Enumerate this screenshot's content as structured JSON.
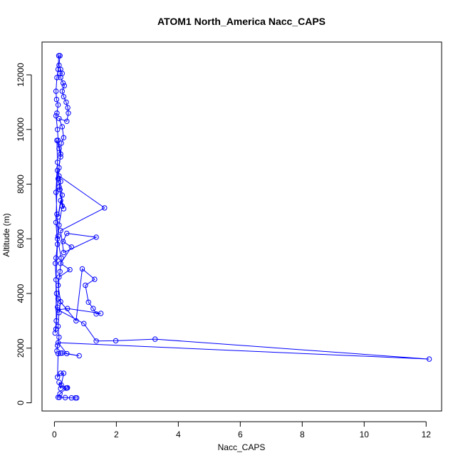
{
  "chart_data": {
    "type": "line",
    "title": "ATOM1 North_America Nacc_CAPS",
    "xlabel": "Nacc_CAPS",
    "ylabel": "Altitude (m)",
    "xlim": [
      -0.4,
      12.5
    ],
    "ylim": [
      -300,
      13200
    ],
    "x_ticks": [
      0,
      2,
      4,
      6,
      8,
      10,
      12
    ],
    "y_ticks": [
      0,
      2000,
      4000,
      6000,
      8000,
      10000,
      12000
    ],
    "grid": false,
    "series": [
      {
        "color": "#0000ff",
        "marker": "open-circle",
        "points": [
          [
            0.68,
            180
          ],
          [
            0.72,
            180
          ],
          [
            0.55,
            180
          ],
          [
            0.35,
            190
          ],
          [
            0.16,
            200
          ],
          [
            0.12,
            200
          ],
          [
            0.18,
            330
          ],
          [
            0.4,
            540
          ],
          [
            0.42,
            550
          ],
          [
            0.37,
            540
          ],
          [
            0.22,
            650
          ],
          [
            0.15,
            750
          ],
          [
            0.2,
            520
          ],
          [
            0.3,
            1080
          ],
          [
            0.2,
            1080
          ],
          [
            0.1,
            940
          ],
          [
            0.12,
            1800
          ],
          [
            0.2,
            1820
          ],
          [
            0.25,
            1820
          ],
          [
            0.8,
            1720
          ],
          [
            0.4,
            1800
          ],
          [
            0.12,
            2200
          ],
          [
            12.1,
            1600
          ],
          [
            3.25,
            2330
          ],
          [
            1.98,
            2270
          ],
          [
            1.35,
            2260
          ],
          [
            0.95,
            2900
          ],
          [
            0.12,
            3400
          ],
          [
            0.42,
            3450
          ],
          [
            1.5,
            3270
          ],
          [
            1.35,
            3250
          ],
          [
            1.25,
            3450
          ],
          [
            1.1,
            3680
          ],
          [
            1.0,
            4300
          ],
          [
            1.3,
            4520
          ],
          [
            0.9,
            4900
          ],
          [
            0.7,
            3000
          ],
          [
            0.12,
            3800
          ],
          [
            0.15,
            4600
          ],
          [
            0.5,
            4870
          ],
          [
            0.2,
            5100
          ],
          [
            0.55,
            5700
          ],
          [
            0.28,
            5900
          ],
          [
            0.4,
            6200
          ],
          [
            1.35,
            6060
          ],
          [
            0.3,
            5500
          ],
          [
            0.2,
            6300
          ],
          [
            1.62,
            7130
          ],
          [
            0.15,
            8300
          ],
          [
            0.25,
            7600
          ],
          [
            0.12,
            6800
          ],
          [
            0.2,
            7400
          ],
          [
            0.3,
            7100
          ],
          [
            0.15,
            7900
          ],
          [
            0.2,
            8100
          ],
          [
            0.1,
            8500
          ],
          [
            0.05,
            6600
          ],
          [
            0.1,
            5800
          ],
          [
            0.05,
            4500
          ],
          [
            0.06,
            3000
          ],
          [
            0.02,
            2550
          ],
          [
            0.05,
            2700
          ],
          [
            0.1,
            3500
          ],
          [
            0.07,
            4000
          ],
          [
            0.03,
            5100
          ],
          [
            0.05,
            5300
          ],
          [
            0.12,
            6100
          ],
          [
            0.08,
            6900
          ],
          [
            0.05,
            7700
          ],
          [
            0.1,
            8800
          ],
          [
            0.08,
            9600
          ],
          [
            0.15,
            9300
          ],
          [
            0.2,
            9000
          ],
          [
            0.22,
            9500
          ],
          [
            0.3,
            9700
          ],
          [
            0.25,
            10100
          ],
          [
            0.15,
            10400
          ],
          [
            0.4,
            10300
          ],
          [
            0.45,
            10600
          ],
          [
            0.43,
            10800
          ],
          [
            0.38,
            11000
          ],
          [
            0.3,
            11200
          ],
          [
            0.25,
            11400
          ],
          [
            0.32,
            11600
          ],
          [
            0.28,
            11700
          ],
          [
            0.2,
            11900
          ],
          [
            0.18,
            12050
          ],
          [
            0.25,
            12050
          ],
          [
            0.2,
            12200
          ],
          [
            0.15,
            12350
          ],
          [
            0.18,
            12700
          ],
          [
            0.14,
            12700
          ],
          [
            0.12,
            12200
          ],
          [
            0.08,
            11900
          ],
          [
            0.05,
            11400
          ],
          [
            0.07,
            11100
          ],
          [
            0.12,
            10900
          ],
          [
            0.08,
            10600
          ],
          [
            0.05,
            10500
          ],
          [
            0.1,
            10000
          ],
          [
            0.12,
            9600
          ],
          [
            0.2,
            9100
          ],
          [
            0.15,
            8600
          ],
          [
            0.12,
            8200
          ],
          [
            0.18,
            7800
          ],
          [
            0.25,
            7200
          ],
          [
            0.15,
            6500
          ],
          [
            0.1,
            6000
          ],
          [
            0.22,
            5300
          ],
          [
            0.18,
            4800
          ],
          [
            0.12,
            4300
          ],
          [
            0.2,
            3700
          ],
          [
            0.15,
            3300
          ],
          [
            0.12,
            2800
          ],
          [
            0.15,
            2400
          ],
          [
            0.1,
            2100
          ],
          [
            0.08,
            1900
          ]
        ]
      }
    ]
  }
}
